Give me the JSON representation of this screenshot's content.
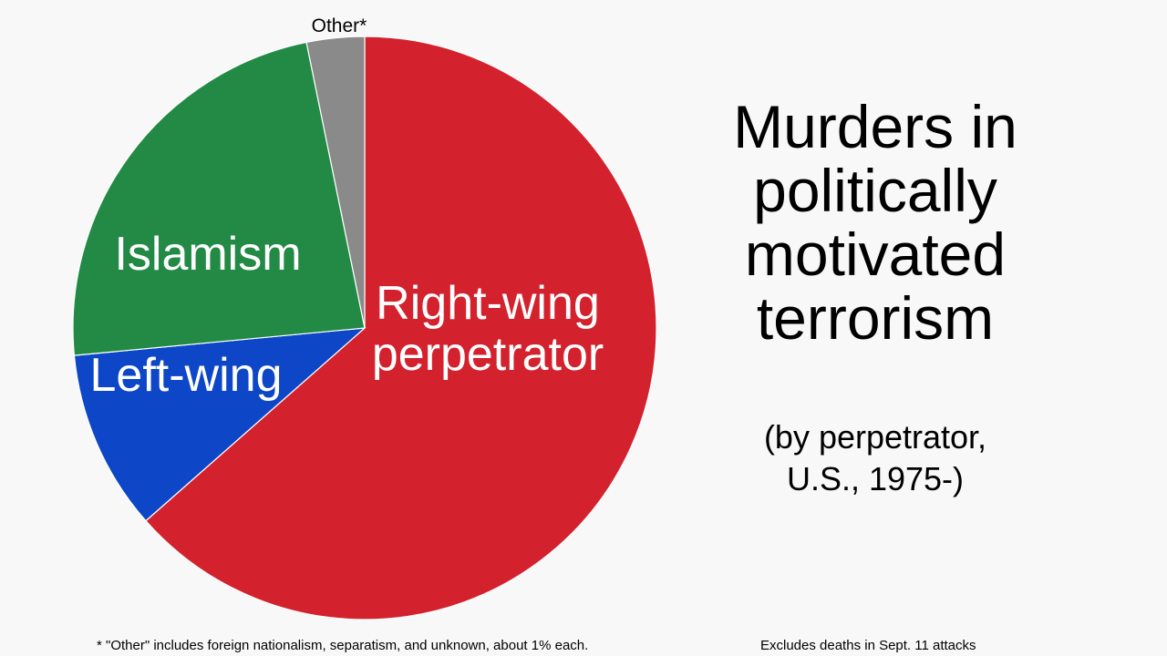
{
  "chart_data": {
    "type": "pie",
    "title": "Murders in politically motivated terrorism",
    "title_lines": [
      "Murders in",
      "politically",
      "motivated",
      "terrorism"
    ],
    "subtitle": "(by perpetrator, U.S., 1975-)",
    "subtitle_lines": [
      "(by perpetrator,",
      "U.S., 1975-)"
    ],
    "slices": [
      {
        "name": "Right-wing perpetrator",
        "label_lines": [
          "Right-wing",
          "perpetrator"
        ],
        "value": 63.5,
        "color": "#d3222d"
      },
      {
        "name": "Left-wing",
        "label_lines": [
          "Left-wing"
        ],
        "value": 10.0,
        "color": "#0d47c7"
      },
      {
        "name": "Islamism",
        "label_lines": [
          "Islamism"
        ],
        "value": 23.3,
        "color": "#238a45"
      },
      {
        "name": "Other*",
        "label_lines": [
          "Other*"
        ],
        "value": 3.2,
        "color": "#8a8a8a"
      }
    ],
    "start_angle_deg": 0,
    "direction": "clockwise",
    "footnotes": {
      "left": "* \"Other\" includes foreign nationalism, separatism, and unknown, about 1% each.",
      "right": "Excludes deaths in Sept. 11 attacks"
    }
  }
}
